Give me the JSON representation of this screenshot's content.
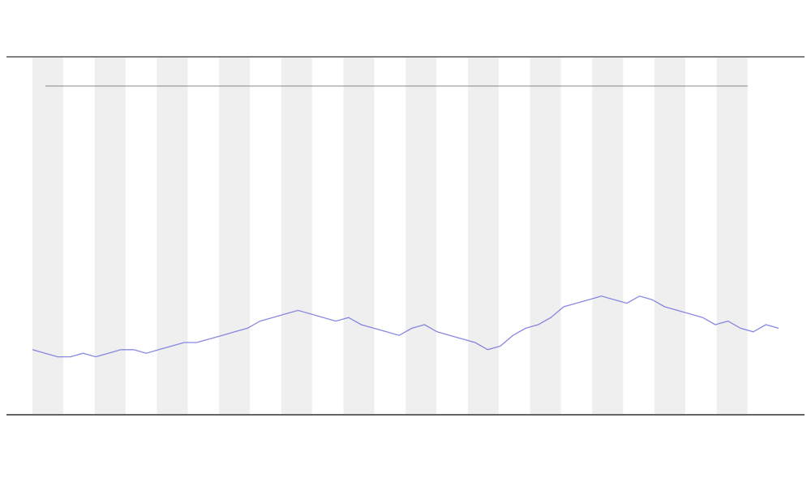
{
  "chart_data": {
    "type": "line",
    "series": [
      {
        "color": "#6b6bdc",
        "values": [
          18,
          17,
          16,
          16,
          17,
          16,
          17,
          18,
          18,
          17,
          18,
          19,
          20,
          20,
          21,
          22,
          23,
          24,
          26,
          27,
          28,
          29,
          28,
          27,
          26,
          27,
          25,
          24,
          23,
          22,
          24,
          25,
          23,
          22,
          21,
          20,
          18,
          19,
          22,
          24,
          25,
          27,
          30,
          31,
          32,
          33,
          32,
          31,
          33,
          32,
          30,
          29,
          28,
          27,
          25,
          26,
          24,
          23,
          25,
          24
        ]
      }
    ],
    "ylim": [
      0,
      100
    ]
  }
}
